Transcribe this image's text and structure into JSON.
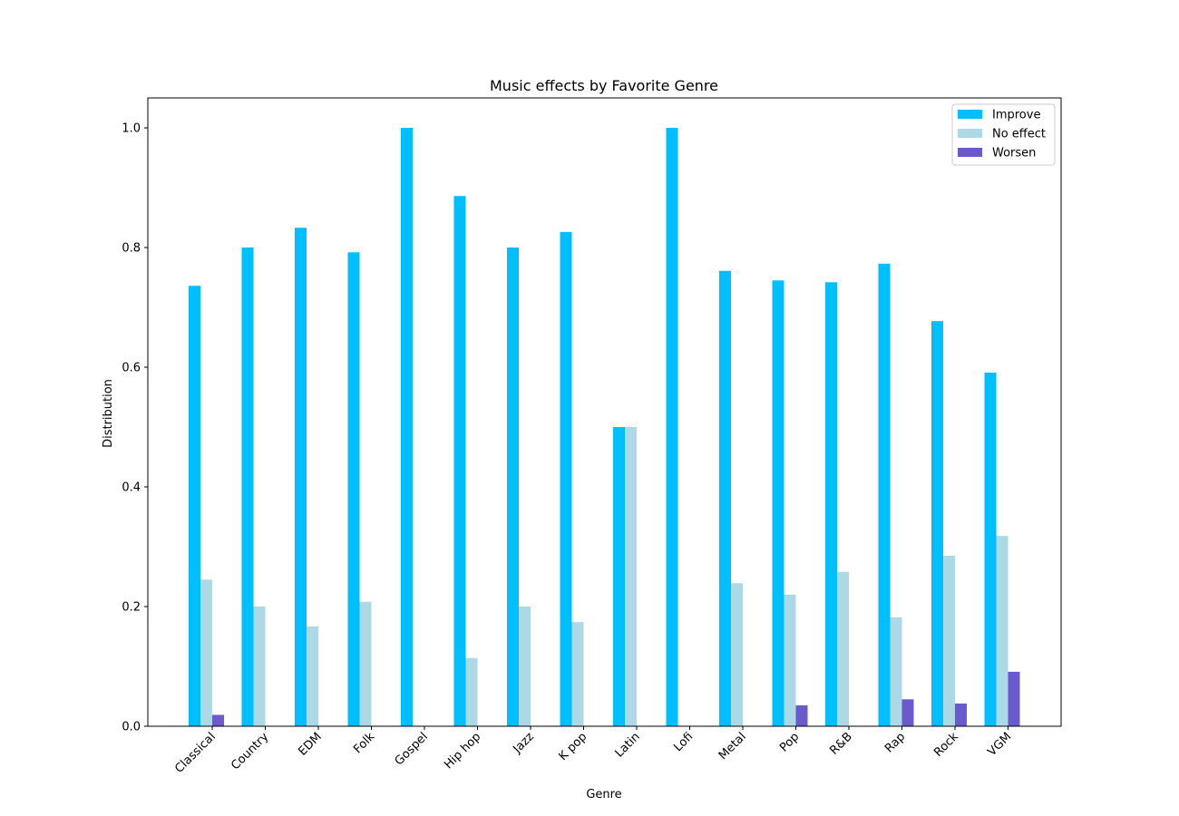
{
  "chart_data": {
    "type": "bar",
    "title": "Music effects by Favorite Genre",
    "xlabel": "Genre",
    "ylabel": "Distribution",
    "ylim": [
      0,
      1.05
    ],
    "yticks": [
      "0.0",
      "0.2",
      "0.4",
      "0.6",
      "0.8",
      "1.0"
    ],
    "categories": [
      "Classical",
      "Country",
      "EDM",
      "Folk",
      "Gospel",
      "Hip hop",
      "Jazz",
      "K pop",
      "Latin",
      "Lofi",
      "Metal",
      "Pop",
      "R&B",
      "Rap",
      "Rock",
      "VGM"
    ],
    "series": [
      {
        "name": "Improve",
        "color": "#00bfff",
        "values": [
          0.736,
          0.8,
          0.833,
          0.792,
          1.0,
          0.886,
          0.8,
          0.826,
          0.5,
          1.0,
          0.761,
          0.745,
          0.742,
          0.773,
          0.677,
          0.591
        ]
      },
      {
        "name": "No effect",
        "color": "#add8e6",
        "values": [
          0.245,
          0.2,
          0.167,
          0.208,
          0.0,
          0.114,
          0.2,
          0.174,
          0.5,
          0.0,
          0.239,
          0.22,
          0.258,
          0.182,
          0.285,
          0.318
        ]
      },
      {
        "name": "Worsen",
        "color": "#6a5acd",
        "values": [
          0.019,
          0.0,
          0.0,
          0.0,
          0.0,
          0.0,
          0.0,
          0.0,
          0.0,
          0.0,
          0.0,
          0.035,
          0.0,
          0.045,
          0.038,
          0.091
        ]
      }
    ],
    "legend_position": "top-right",
    "grid": false
  }
}
